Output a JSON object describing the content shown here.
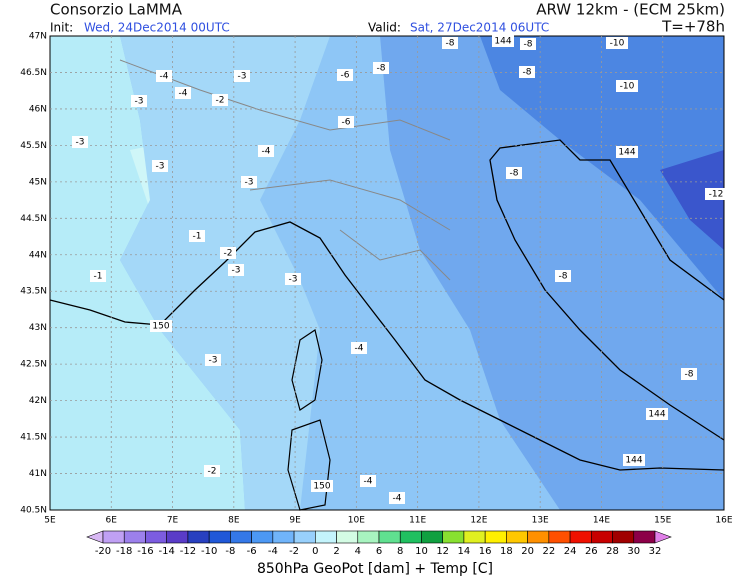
{
  "header": {
    "brand": "Consorzio LaMMA",
    "model": "ARW 12km - (ECM 25km)",
    "init_label": "Init:",
    "init_time": "Wed, 24Dec2014 00UTC",
    "valid_label": "Valid:",
    "valid_time": "Sat, 27Dec2014 06UTC",
    "lead": "T=+78h"
  },
  "map": {
    "lat_labels": [
      "47N",
      "46.5N",
      "46N",
      "45.5N",
      "45N",
      "44.5N",
      "44N",
      "43.5N",
      "43N",
      "42.5N",
      "42N",
      "41.5N",
      "41N",
      "40.5N"
    ],
    "lon_labels": [
      "5E",
      "6E",
      "7E",
      "8E",
      "9E",
      "10E",
      "11E",
      "12E",
      "13E",
      "14E",
      "15E",
      "16E"
    ],
    "contour_labels": [
      "-8",
      "144",
      "-8",
      "-10",
      "-4",
      "-3",
      "-6",
      "-8",
      "-8",
      "-3",
      "-4",
      "-2",
      "-10",
      "-3",
      "-4",
      "-6",
      "-8",
      "144",
      "-3",
      "-3",
      "-12",
      "-1",
      "-2",
      "-3",
      "-1",
      "-3",
      "-8",
      "150",
      "-3",
      "-4",
      "-8",
      "144",
      "144",
      "-2",
      "150",
      "-4",
      "-4"
    ]
  },
  "colorbar": {
    "labels": [
      -20,
      -18,
      -16,
      -14,
      -12,
      -10,
      -8,
      -6,
      -4,
      -2,
      0,
      2,
      4,
      6,
      8,
      10,
      12,
      14,
      16,
      18,
      20,
      22,
      24,
      26,
      28,
      30,
      32
    ],
    "colors": [
      "#d8b8f4",
      "#c0a0f4",
      "#9c80ec",
      "#7c5ce0",
      "#5a3cc8",
      "#2840c0",
      "#2058d8",
      "#3478e8",
      "#4c98f4",
      "#70b4fa",
      "#98d0fc",
      "#c4f4fc",
      "#d4fce4",
      "#a8f4c0",
      "#60e090",
      "#20c060",
      "#10a040",
      "#88e030",
      "#e0f020",
      "#fff000",
      "#ffc800",
      "#ff9000",
      "#ff5000",
      "#f01000",
      "#c80000",
      "#a00000",
      "#8c0048",
      "#e080e8"
    ],
    "caption": "850hPa GeoPot [dam] + Temp [C]"
  }
}
